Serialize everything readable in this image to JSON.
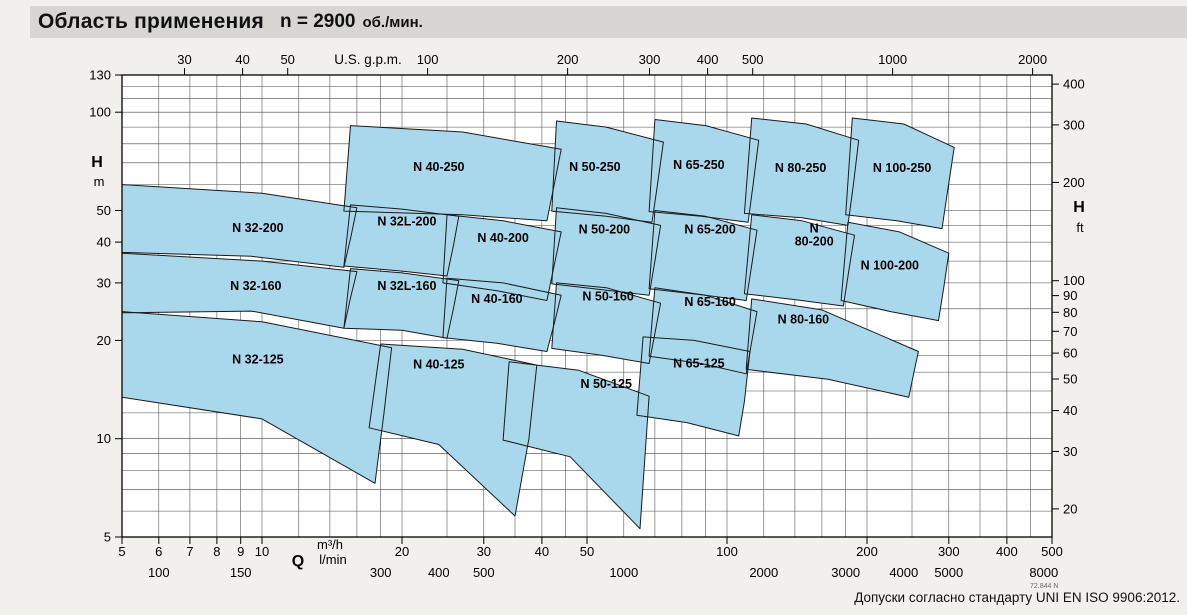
{
  "page": {
    "title": "Область применения",
    "title_speed": "n = 2900",
    "title_units": "об./мин.",
    "footer_note": "Допуски согласно стандарту UNI EN ISO 9906:2012.",
    "doc_number": "72.844 N"
  },
  "chart_data": {
    "type": "area",
    "title": "Область применения n = 2900 об./мин.",
    "scale": "log-log",
    "q_range_m3h": [
      5,
      500
    ],
    "h_range_m": [
      5,
      130
    ],
    "grid": {
      "on": true,
      "q_lines": [
        5,
        6,
        7,
        8,
        9,
        10,
        12,
        14,
        16,
        18,
        20,
        25,
        30,
        35,
        40,
        45,
        50,
        60,
        70,
        80,
        90,
        100,
        120,
        140,
        160,
        180,
        200,
        250,
        300,
        350,
        400,
        450,
        500
      ],
      "h_lines": [
        5,
        6,
        7,
        8,
        9,
        10,
        12,
        14,
        16,
        18,
        20,
        25,
        30,
        35,
        40,
        45,
        50,
        60,
        70,
        80,
        90,
        100,
        110,
        120,
        130
      ]
    },
    "axes": {
      "bottom_primary": {
        "symbol": "Q",
        "unit": "m³/h",
        "ticks": [
          5,
          6,
          7,
          8,
          9,
          10,
          20,
          30,
          40,
          50,
          100,
          200,
          300,
          400,
          500
        ]
      },
      "bottom_secondary": {
        "unit": "l/min",
        "per_m3h": 16.6667,
        "ticks": [
          100,
          150,
          300,
          400,
          500,
          1000,
          2000,
          3000,
          4000,
          5000,
          8000
        ]
      },
      "top": {
        "unit": "U.S. g.p.m.",
        "per_m3h": 4.4029,
        "ticks": [
          30,
          40,
          50,
          100,
          200,
          300,
          400,
          500,
          1000,
          2000
        ]
      },
      "left": {
        "symbol": "H",
        "unit": "m",
        "ticks": [
          130,
          100,
          50,
          40,
          30,
          20,
          10,
          5
        ]
      },
      "right": {
        "symbol": "H",
        "unit": "ft",
        "m_per_ft": 0.3048,
        "ticks": [
          400,
          300,
          200,
          100,
          90,
          80,
          70,
          60,
          50,
          40,
          30,
          20
        ]
      }
    },
    "style": {
      "region_fill": "#a9d8ec",
      "region_stroke": "#1a1a1a",
      "grid_color": "#4a4a4a"
    },
    "regions": [
      {
        "label": "N 32-125",
        "label_q": 9.8,
        "label_h": 17,
        "points": [
          [
            5,
            24.5
          ],
          [
            10,
            22.8
          ],
          [
            19,
            19
          ],
          [
            18.3,
            12
          ],
          [
            17.5,
            7.3
          ],
          [
            10,
            11.5
          ],
          [
            5,
            13.4
          ]
        ]
      },
      {
        "label": "N 40-125",
        "label_q": 24,
        "label_h": 16.4,
        "points": [
          [
            18,
            19.5
          ],
          [
            27,
            18.8
          ],
          [
            39,
            16.8
          ],
          [
            37.5,
            10
          ],
          [
            35,
            5.8
          ],
          [
            24,
            9.6
          ],
          [
            17,
            10.8
          ]
        ]
      },
      {
        "label": "N 50-125",
        "label_q": 55,
        "label_h": 14.3,
        "points": [
          [
            34,
            17.2
          ],
          [
            48,
            16.2
          ],
          [
            68,
            13.5
          ],
          [
            66.5,
            8.5
          ],
          [
            65,
            5.3
          ],
          [
            46,
            8.8
          ],
          [
            33,
            9.9
          ]
        ]
      },
      {
        "label": "N 65-125",
        "label_q": 87,
        "label_h": 16.5,
        "points": [
          [
            66,
            20.5
          ],
          [
            85,
            20
          ],
          [
            112,
            18.5
          ],
          [
            109,
            13
          ],
          [
            106,
            10.2
          ],
          [
            82,
            11.2
          ],
          [
            64,
            11.8
          ]
        ]
      },
      {
        "label": "N 32-160",
        "label_q": 9.7,
        "label_h": 28.5,
        "points": [
          [
            5,
            37
          ],
          [
            10,
            35
          ],
          [
            16,
            32.5
          ],
          [
            15.5,
            27
          ],
          [
            15,
            21.8
          ],
          [
            9.5,
            24.6
          ],
          [
            5,
            24.3
          ]
        ]
      },
      {
        "label": "N 32L-160",
        "label_q": 20.5,
        "label_h": 28.5,
        "points": [
          [
            15.5,
            33.2
          ],
          [
            20,
            32.2
          ],
          [
            26.5,
            30.5
          ],
          [
            25.8,
            25
          ],
          [
            25,
            20.3
          ],
          [
            20,
            21.5
          ],
          [
            15,
            21.8
          ]
        ]
      },
      {
        "label": "N 40-160",
        "label_q": 32,
        "label_h": 26,
        "points": [
          [
            25,
            31
          ],
          [
            33,
            30
          ],
          [
            44,
            27.5
          ],
          [
            42.5,
            22.5
          ],
          [
            41,
            18.5
          ],
          [
            32,
            19.6
          ],
          [
            24.5,
            20.4
          ]
        ]
      },
      {
        "label": "N 50-160",
        "label_q": 55.5,
        "label_h": 26.5,
        "points": [
          [
            43,
            30
          ],
          [
            55,
            29
          ],
          [
            72,
            26
          ],
          [
            70,
            21
          ],
          [
            68,
            17
          ],
          [
            54,
            18
          ],
          [
            42,
            18.9
          ]
        ]
      },
      {
        "label": "N 65-160",
        "label_q": 92,
        "label_h": 25.5,
        "points": [
          [
            70,
            29
          ],
          [
            90,
            27.5
          ],
          [
            116,
            24.5
          ],
          [
            113,
            19.8
          ],
          [
            110,
            15.8
          ],
          [
            88,
            17
          ],
          [
            68,
            17.9
          ]
        ]
      },
      {
        "label": "N 80-160",
        "label_q": 146,
        "label_h": 22.5,
        "points": [
          [
            113,
            26.8
          ],
          [
            160,
            24.8
          ],
          [
            258,
            18.5
          ],
          [
            252,
            15.8
          ],
          [
            246,
            13.4
          ],
          [
            165,
            15.2
          ],
          [
            110,
            16.3
          ]
        ]
      },
      {
        "label": "N 32-200",
        "label_q": 9.8,
        "label_h": 43,
        "points": [
          [
            5,
            60
          ],
          [
            10,
            56.5
          ],
          [
            16,
            51
          ],
          [
            15.5,
            41
          ],
          [
            15,
            33.5
          ],
          [
            9.5,
            36.2
          ],
          [
            5,
            37.2
          ]
        ]
      },
      {
        "label": "N 32L-200",
        "label_q": 20.5,
        "label_h": 45,
        "points": [
          [
            15.5,
            52
          ],
          [
            20,
            50.5
          ],
          [
            26.5,
            48
          ],
          [
            25.8,
            39
          ],
          [
            25,
            31.5
          ],
          [
            20,
            32.6
          ],
          [
            15,
            33.8
          ]
        ]
      },
      {
        "label": "N 40-200",
        "label_q": 33,
        "label_h": 40,
        "points": [
          [
            25,
            48.5
          ],
          [
            33,
            46.5
          ],
          [
            44,
            43
          ],
          [
            42.5,
            34
          ],
          [
            41,
            26.5
          ],
          [
            32,
            28.4
          ],
          [
            24.5,
            30
          ]
        ]
      },
      {
        "label": "N 50-200",
        "label_q": 54.5,
        "label_h": 42.5,
        "points": [
          [
            43,
            51
          ],
          [
            55,
            49
          ],
          [
            72,
            45
          ],
          [
            70,
            35
          ],
          [
            68,
            27.5
          ],
          [
            54,
            28.6
          ],
          [
            42,
            29.8
          ]
        ]
      },
      {
        "label": "N 65-200",
        "label_q": 92,
        "label_h": 42.5,
        "points": [
          [
            70,
            50
          ],
          [
            90,
            48
          ],
          [
            116,
            43.5
          ],
          [
            113,
            34
          ],
          [
            110,
            26.5
          ],
          [
            88,
            27.6
          ],
          [
            68,
            28.8
          ]
        ]
      },
      {
        "label": "N 80-200",
        "two_line": true,
        "label_q": 154,
        "label_h": 41,
        "points": [
          [
            113,
            48.5
          ],
          [
            145,
            46.5
          ],
          [
            188,
            42
          ],
          [
            183,
            33
          ],
          [
            178,
            25.5
          ],
          [
            142,
            26.6
          ],
          [
            109,
            27.8
          ]
        ]
      },
      {
        "label": "N 100-200",
        "label_q": 224,
        "label_h": 33,
        "points": [
          [
            182,
            46
          ],
          [
            235,
            43
          ],
          [
            300,
            37
          ],
          [
            293,
            29.5
          ],
          [
            285,
            23
          ],
          [
            225,
            24.5
          ],
          [
            176,
            26.5
          ]
        ]
      },
      {
        "label": "N 40-250",
        "label_q": 24,
        "label_h": 66,
        "points": [
          [
            15.5,
            91
          ],
          [
            27,
            87
          ],
          [
            44,
            77
          ],
          [
            42.5,
            60
          ],
          [
            41,
            46.5
          ],
          [
            27,
            48.5
          ],
          [
            15,
            49.8
          ]
        ]
      },
      {
        "label": "N 50-250",
        "label_q": 52,
        "label_h": 66,
        "points": [
          [
            43,
            94
          ],
          [
            55,
            90
          ],
          [
            73,
            81
          ],
          [
            71,
            61
          ],
          [
            69,
            46
          ],
          [
            55,
            48
          ],
          [
            42,
            49.8
          ]
        ]
      },
      {
        "label": "N 65-250",
        "label_q": 87,
        "label_h": 67,
        "points": [
          [
            70,
            95
          ],
          [
            90,
            91
          ],
          [
            117,
            82
          ],
          [
            114,
            61
          ],
          [
            111,
            46
          ],
          [
            88,
            48
          ],
          [
            68,
            49.6
          ]
        ]
      },
      {
        "label": "N 80-250",
        "label_q": 144,
        "label_h": 65.5,
        "points": [
          [
            113,
            96
          ],
          [
            148,
            92
          ],
          [
            192,
            82
          ],
          [
            187,
            60
          ],
          [
            182,
            45
          ],
          [
            145,
            47.5
          ],
          [
            109,
            49
          ]
        ]
      },
      {
        "label": "N 100-250",
        "label_q": 238,
        "label_h": 65.5,
        "points": [
          [
            186,
            96
          ],
          [
            240,
            92
          ],
          [
            308,
            78
          ],
          [
            299,
            59
          ],
          [
            290,
            44
          ],
          [
            232,
            46.5
          ],
          [
            180,
            48.5
          ]
        ]
      }
    ]
  }
}
